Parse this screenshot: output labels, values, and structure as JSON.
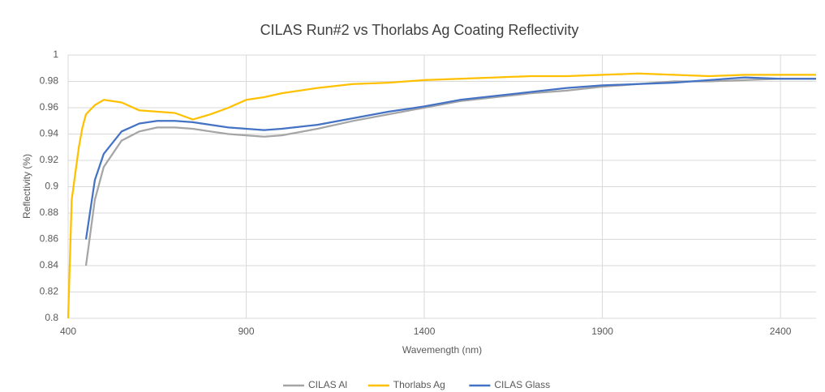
{
  "chart_data": {
    "type": "line",
    "title": "CILAS Run#2 vs Thorlabs Ag Coating Reflectivity",
    "x_label": "Wavemength (nm)",
    "y_label": "Reflectivity (%)",
    "x": [
      400,
      410,
      420,
      430,
      440,
      450,
      475,
      500,
      550,
      600,
      650,
      700,
      750,
      800,
      850,
      900,
      950,
      1000,
      1100,
      1200,
      1300,
      1400,
      1500,
      1600,
      1700,
      1800,
      1900,
      2000,
      2100,
      2200,
      2300,
      2400,
      2500
    ],
    "series": [
      {
        "name": "CILAS Al",
        "color": "#a5a5a5",
        "values": [
          null,
          null,
          null,
          null,
          null,
          0.84,
          0.89,
          0.915,
          0.935,
          0.942,
          0.945,
          0.945,
          0.944,
          0.942,
          0.94,
          0.939,
          0.938,
          0.939,
          0.944,
          0.95,
          0.955,
          0.96,
          0.965,
          0.968,
          0.971,
          0.973,
          0.976,
          0.978,
          0.98,
          0.98,
          0.981,
          0.982,
          0.982
        ]
      },
      {
        "name": "Thorlabs Ag",
        "color": "#ffc000",
        "values": [
          0.8,
          0.89,
          0.91,
          0.93,
          0.945,
          0.955,
          0.962,
          0.966,
          0.964,
          0.958,
          0.957,
          0.956,
          0.951,
          0.955,
          0.96,
          0.966,
          0.968,
          0.971,
          0.975,
          0.978,
          0.979,
          0.981,
          0.982,
          0.983,
          0.984,
          0.984,
          0.985,
          0.986,
          0.985,
          0.984,
          0.985,
          0.985,
          0.985
        ]
      },
      {
        "name": "CILAS Glass",
        "color": "#4472c4",
        "values": [
          null,
          null,
          null,
          null,
          null,
          0.86,
          0.905,
          0.925,
          0.942,
          0.948,
          0.95,
          0.95,
          0.949,
          0.947,
          0.945,
          0.944,
          0.943,
          0.944,
          0.947,
          0.952,
          0.957,
          0.961,
          0.966,
          0.969,
          0.972,
          0.975,
          0.977,
          0.978,
          0.979,
          0.981,
          0.983,
          0.982,
          0.982
        ]
      }
    ],
    "xlim": [
      400,
      2500
    ],
    "xticks": [
      400,
      900,
      1400,
      1900,
      2400
    ],
    "ylim": [
      0.8,
      1
    ],
    "yticks": [
      0.8,
      0.82,
      0.84,
      0.86,
      0.88,
      0.9,
      0.92,
      0.94,
      0.96,
      0.98,
      1
    ],
    "grid": true,
    "legend": "bottom"
  }
}
